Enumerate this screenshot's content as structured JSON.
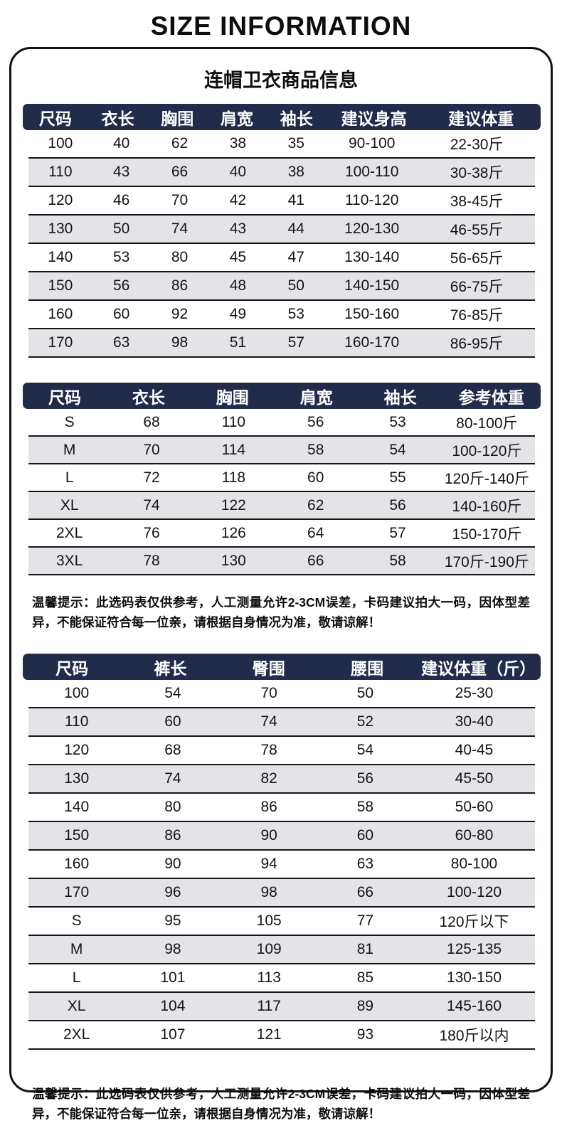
{
  "page_title": "SIZE INFORMATION",
  "card": {
    "subtitle": "连帽卫衣商品信息",
    "hoodie_kids_table": {
      "headers": [
        "尺码",
        "衣长",
        "胸围",
        "肩宽",
        "袖长",
        "建议身高",
        "建议体重"
      ],
      "rows": [
        [
          "100",
          "40",
          "62",
          "38",
          "35",
          "90-100",
          "22-30斤"
        ],
        [
          "110",
          "43",
          "66",
          "40",
          "38",
          "100-110",
          "30-38斤"
        ],
        [
          "120",
          "46",
          "70",
          "42",
          "41",
          "110-120",
          "38-45斤"
        ],
        [
          "130",
          "50",
          "74",
          "43",
          "44",
          "120-130",
          "46-55斤"
        ],
        [
          "140",
          "53",
          "80",
          "45",
          "47",
          "130-140",
          "56-65斤"
        ],
        [
          "150",
          "56",
          "86",
          "48",
          "50",
          "140-150",
          "66-75斤"
        ],
        [
          "160",
          "60",
          "92",
          "49",
          "53",
          "150-160",
          "76-85斤"
        ],
        [
          "170",
          "63",
          "98",
          "51",
          "57",
          "160-170",
          "86-95斤"
        ]
      ]
    },
    "hoodie_adult_table": {
      "headers": [
        "尺码",
        "衣长",
        "胸围",
        "肩宽",
        "袖长",
        "参考体重"
      ],
      "rows": [
        [
          "S",
          "68",
          "110",
          "56",
          "53",
          "80-100斤"
        ],
        [
          "M",
          "70",
          "114",
          "58",
          "54",
          "100-120斤"
        ],
        [
          "L",
          "72",
          "118",
          "60",
          "55",
          "120斤-140斤"
        ],
        [
          "XL",
          "74",
          "122",
          "62",
          "56",
          "140-160斤"
        ],
        [
          "2XL",
          "76",
          "126",
          "64",
          "57",
          "150-170斤"
        ],
        [
          "3XL",
          "78",
          "130",
          "66",
          "58",
          "170斤-190斤"
        ]
      ]
    },
    "pants_table": {
      "headers": [
        "尺码",
        "裤长",
        "臀围",
        "腰围",
        "建议体重（斤）"
      ],
      "rows": [
        [
          "100",
          "54",
          "70",
          "50",
          "25-30"
        ],
        [
          "110",
          "60",
          "74",
          "52",
          "30-40"
        ],
        [
          "120",
          "68",
          "78",
          "54",
          "40-45"
        ],
        [
          "130",
          "74",
          "82",
          "56",
          "45-50"
        ],
        [
          "140",
          "80",
          "86",
          "58",
          "50-60"
        ],
        [
          "150",
          "86",
          "90",
          "60",
          "60-80"
        ],
        [
          "160",
          "90",
          "94",
          "63",
          "80-100"
        ],
        [
          "170",
          "96",
          "98",
          "66",
          "100-120"
        ],
        [
          "S",
          "95",
          "105",
          "77",
          "120斤以下"
        ],
        [
          "M",
          "98",
          "109",
          "81",
          "125-135"
        ],
        [
          "L",
          "101",
          "113",
          "85",
          "130-150"
        ],
        [
          "XL",
          "104",
          "117",
          "89",
          "145-160"
        ],
        [
          "2XL",
          "107",
          "121",
          "93",
          "180斤以内"
        ]
      ]
    },
    "tip_top": "温馨提示：此选码表仅供参考，人工测量允许2-3CM误差，卡码建议拍大一码，因体型差异，不能保证符合每一位亲，请根据自身情况为准，敬请谅解！",
    "tip_bottom": "温馨提示：此选码表仅供参考，人工测量允许2-3CM误差，卡码建议拍大一码，因体型差异，不能保证符合每一位亲，请根据自身情况为准，敬请谅解！"
  },
  "colors": {
    "header_bar_bg": "#222b49",
    "header_bar_text": "#ffffff",
    "alt_row_bg": "#e4e3e8",
    "row_divider": "#151515",
    "border": "#111111",
    "text": "#0d0d0d",
    "background": "#ffffff"
  }
}
